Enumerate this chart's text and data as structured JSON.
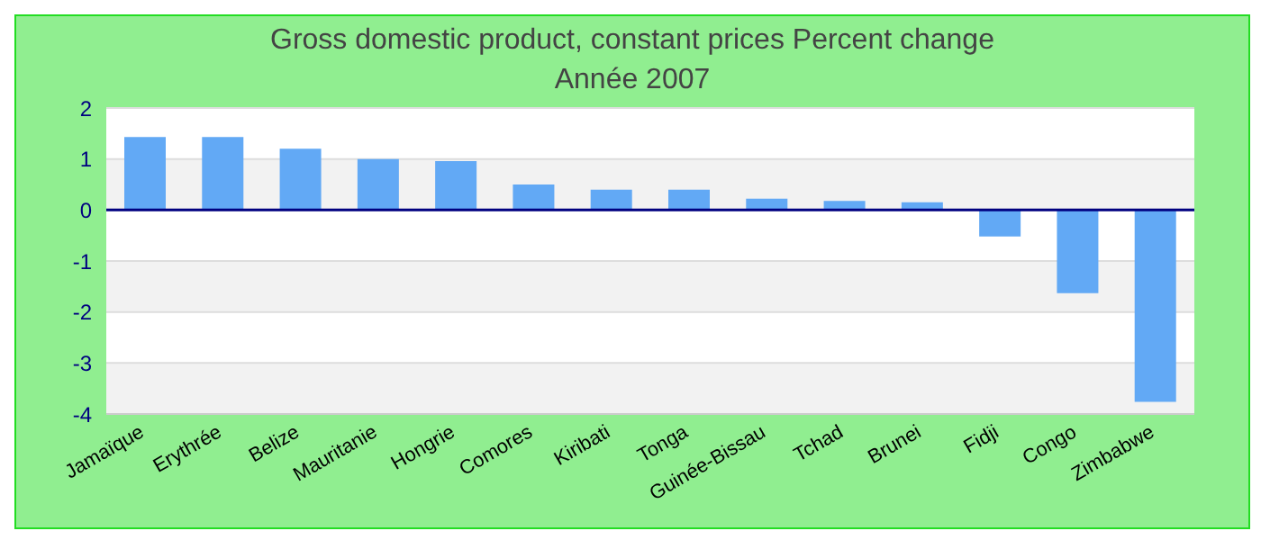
{
  "chart_data": {
    "type": "bar",
    "title": "Gross domestic product, constant prices  Percent change",
    "subtitle": "Année 2007",
    "categories": [
      "Jamaïque",
      "Erythrée",
      "Belize",
      "Mauritanie",
      "Hongrie",
      "Comores",
      "Kiribati",
      "Tonga",
      "Guinée-Bissau",
      "Tchad",
      "Brunei",
      "Fidji",
      "Congo",
      "Zimbabwe"
    ],
    "values": [
      1.43,
      1.43,
      1.2,
      1.0,
      0.96,
      0.5,
      0.4,
      0.4,
      0.22,
      0.18,
      0.15,
      -0.52,
      -1.63,
      -3.76
    ],
    "color": "#62a9f5",
    "ylim": [
      -4,
      2
    ],
    "yticks": [
      -4,
      -3,
      -2,
      -1,
      0,
      1,
      2
    ],
    "grid": "y",
    "legend": false,
    "ref_lines": [
      {
        "axis": "y",
        "value": 0,
        "color": "#000080"
      }
    ]
  }
}
